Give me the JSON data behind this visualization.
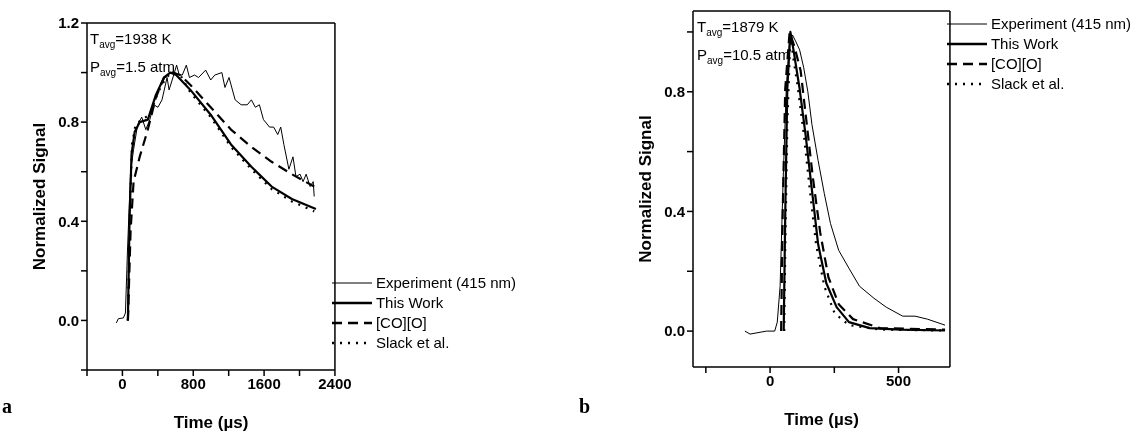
{
  "chart_data": [
    {
      "type": "line",
      "xlabel": "Time (µs)",
      "ylabel": "Normalized Signal",
      "xlim": [
        -400,
        2400
      ],
      "ylim": [
        -0.2,
        1.2
      ],
      "xticks": [
        {
          "value": -400,
          "label": null
        },
        0,
        {
          "value": 400,
          "label": null
        },
        800,
        {
          "value": 1200,
          "label": null
        },
        1600,
        {
          "value": 2000,
          "label": null
        },
        2400
      ],
      "yticks": [
        {
          "value": -0.2,
          "label": null
        },
        "0.0",
        {
          "value": 0.2,
          "label": null
        },
        0.4,
        {
          "value": 0.6,
          "label": null
        },
        0.8,
        {
          "value": 1.0,
          "label": null
        },
        1.2
      ],
      "legend": "bottom right",
      "marker": "none",
      "annotations": [
        "T$_{avg}$=1938 K",
        "P$_{avg}$=1.5 atm",
        "a"
      ],
      "series": [
        {
          "name": "Experiment (415 nm)",
          "color": "#000000",
          "line_style": "solid",
          "x": [
            -69,
            -46,
            11,
            34,
            57,
            92,
            126,
            172,
            218,
            264,
            309,
            355,
            401,
            447,
            504,
            527,
            562,
            612,
            642,
            676,
            722,
            757,
            814,
            860,
            940,
            997,
            1043,
            1123,
            1158,
            1204,
            1273,
            1341,
            1410,
            1456,
            1501,
            1547,
            1593,
            1662,
            1708,
            1754,
            1788,
            1823,
            1880,
            1926,
            1960,
            2006,
            2040,
            2075,
            2120,
            2155,
            2166
          ],
          "values": [
            -0.01,
            0.007,
            0.01,
            0.03,
            0.28,
            0.6,
            0.69,
            0.79,
            0.82,
            0.77,
            0.81,
            0.87,
            0.86,
            0.89,
            0.98,
            0.93,
            0.97,
            1.03,
            0.99,
            0.99,
            1.03,
            0.98,
            0.99,
            0.98,
            1.01,
            0.97,
            0.99,
            1.0,
            0.94,
            0.98,
            0.89,
            0.87,
            0.87,
            0.89,
            0.86,
            0.87,
            0.81,
            0.78,
            0.78,
            0.75,
            0.78,
            0.71,
            0.61,
            0.66,
            0.58,
            0.59,
            0.56,
            0.59,
            0.54,
            0.56,
            0.5
          ]
        },
        {
          "name": "This Work",
          "color": "#000000",
          "line_style": "solid",
          "x": [
            62,
            80,
            103,
            138,
            195,
            287,
            378,
            470,
            539,
            607,
            768,
            997,
            1226,
            1456,
            1685,
            1914,
            2185
          ],
          "values": [
            0,
            0.4,
            0.67,
            0.76,
            0.8,
            0.81,
            0.91,
            0.98,
            1.0,
            0.99,
            0.93,
            0.83,
            0.71,
            0.62,
            0.54,
            0.49,
            0.45
          ]
        },
        {
          "name": "[CO][O]",
          "color": "#000000",
          "line_style": "dashed",
          "x": [
            62,
            92,
            126,
            195,
            287,
            378,
            470,
            562,
            653,
            768,
            997,
            1226,
            1456,
            1685,
            1914,
            2166
          ],
          "values": [
            0,
            0.36,
            0.56,
            0.66,
            0.77,
            0.9,
            0.98,
            1.0,
            0.99,
            0.95,
            0.86,
            0.77,
            0.7,
            0.64,
            0.59,
            0.54
          ]
        },
        {
          "name": "Slack et al.",
          "color": "#000000",
          "line_style": "dotted",
          "x": [
            62,
            85,
            108,
            149,
            218,
            309,
            401,
            493,
            562,
            653,
            768,
            997,
            1226,
            1456,
            1685,
            1914,
            2166
          ],
          "values": [
            0,
            0.43,
            0.71,
            0.79,
            0.81,
            0.83,
            0.92,
            0.98,
            1.0,
            0.99,
            0.92,
            0.82,
            0.7,
            0.61,
            0.53,
            0.48,
            0.44
          ]
        }
      ]
    },
    {
      "type": "line",
      "xlabel": "Time (µs)",
      "ylabel": "Normalized Signal",
      "xlim": [
        -300,
        700
      ],
      "ylim": [
        -0.12,
        1.07
      ],
      "xticks": [
        {
          "value": -250,
          "label": null
        },
        0,
        {
          "value": 250,
          "label": null
        },
        500
      ],
      "yticks": [
        "0.0",
        {
          "value": 0.2,
          "label": null
        },
        0.4,
        {
          "value": 0.6,
          "label": null
        },
        0.8,
        {
          "value": 1.0,
          "label": null
        }
      ],
      "legend": "top right",
      "marker": "none",
      "annotations": [
        "T$_{avg}$=1879 K",
        "P$_{avg}$=10.5 atm",
        "b"
      ],
      "series": [
        {
          "name": "Experiment (415 nm)",
          "color": "#000000",
          "line_style": "solid",
          "x": [
            -98,
            -78,
            -14,
            18,
            28,
            39,
            51,
            63,
            75,
            87,
            99,
            115,
            131,
            147,
            163,
            187,
            211,
            235,
            267,
            307,
            348,
            404,
            452,
            516,
            564,
            612,
            681
          ],
          "values": [
            0,
            -0.01,
            0,
            0,
            0.03,
            0.15,
            0.51,
            0.81,
            0.96,
            0.99,
            0.97,
            0.94,
            0.88,
            0.8,
            0.69,
            0.57,
            0.46,
            0.36,
            0.27,
            0.21,
            0.15,
            0.11,
            0.08,
            0.05,
            0.05,
            0.04,
            0.02
          ]
        },
        {
          "name": "This Work",
          "color": "#000000",
          "line_style": "solid",
          "x": [
            53,
            59,
            67,
            79,
            91,
            115,
            139,
            163,
            187,
            219,
            259,
            307,
            388,
            508,
            681
          ],
          "values": [
            0,
            0.39,
            0.81,
            1.0,
            0.94,
            0.81,
            0.65,
            0.47,
            0.29,
            0.16,
            0.08,
            0.03,
            0.01,
            0.005,
            0.002
          ]
        },
        {
          "name": "[CO][O]",
          "color": "#000000",
          "line_style": "dashed",
          "x": [
            43,
            49,
            59,
            76,
            95,
            119,
            143,
            167,
            195,
            227,
            267,
            323,
            428,
            681
          ],
          "values": [
            0,
            0.39,
            0.81,
            1.0,
            0.95,
            0.87,
            0.69,
            0.51,
            0.33,
            0.18,
            0.09,
            0.04,
            0.01,
            0.005
          ]
        },
        {
          "name": "Slack et al.",
          "color": "#000000",
          "line_style": "dotted",
          "x": [
            55,
            59,
            67,
            79,
            91,
            107,
            131,
            155,
            179,
            211,
            251,
            307,
            428,
            681
          ],
          "values": [
            0,
            0.27,
            0.69,
            0.99,
            0.91,
            0.82,
            0.66,
            0.47,
            0.29,
            0.15,
            0.06,
            0.02,
            0.005,
            0.002
          ]
        }
      ]
    }
  ]
}
